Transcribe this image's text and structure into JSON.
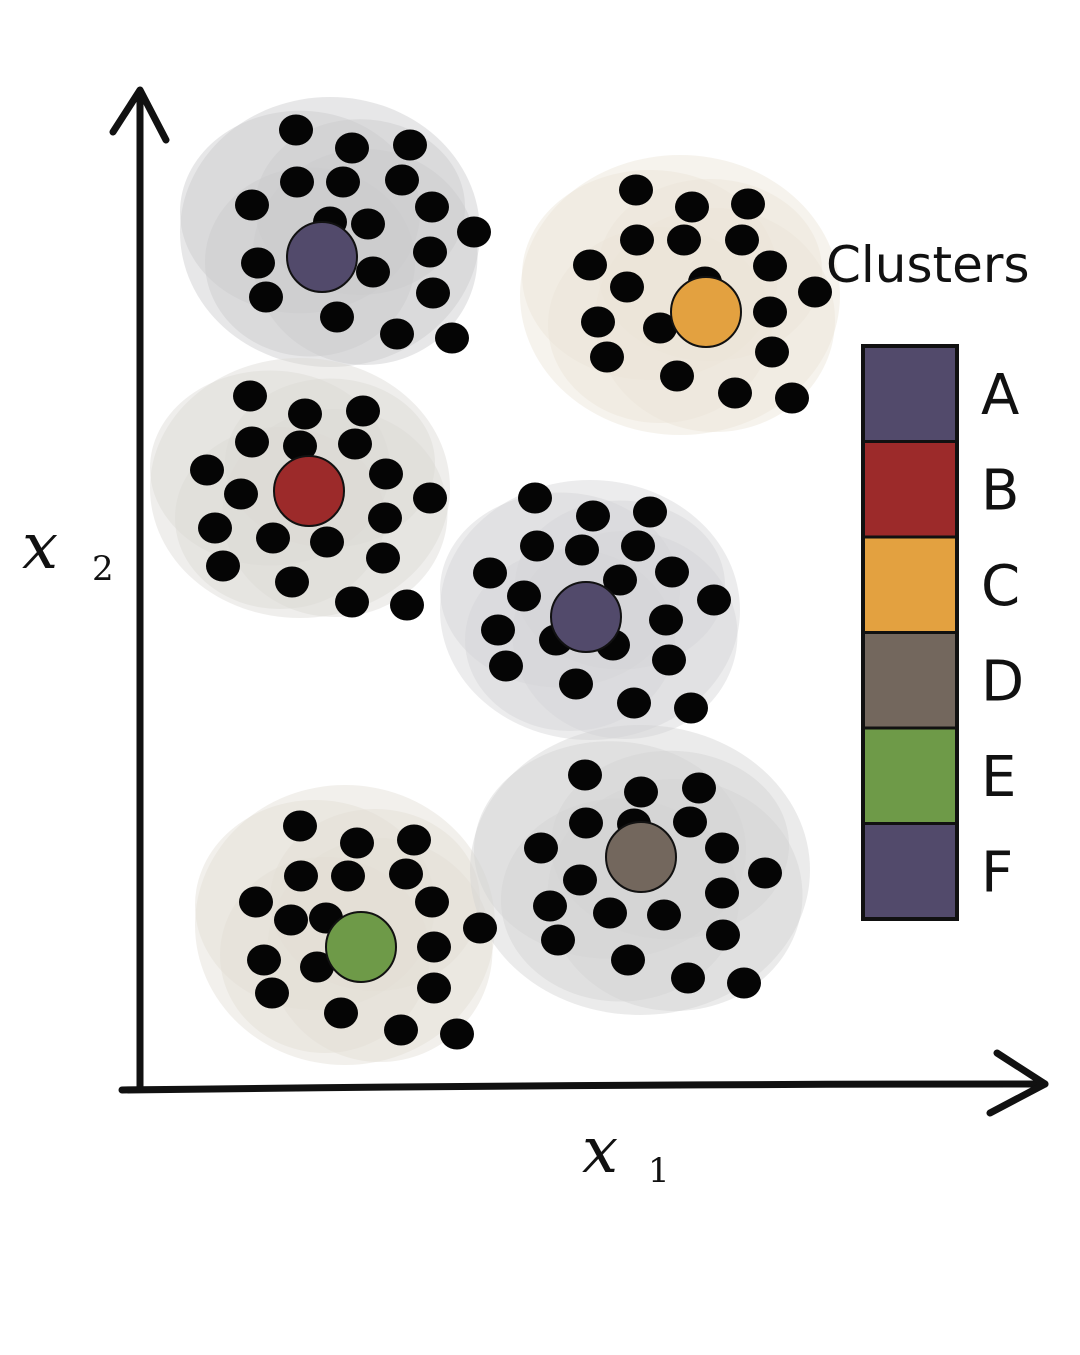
{
  "axes": {
    "x_label": "x",
    "x_subscript": "1",
    "y_label": "x",
    "y_subscript": "2"
  },
  "legend": {
    "title": "Clusters",
    "entries": [
      {
        "label": "A",
        "color": "#524a6b"
      },
      {
        "label": "B",
        "color": "#9c2a2a"
      },
      {
        "label": "C",
        "color": "#e3a140"
      },
      {
        "label": "D",
        "color": "#73675d"
      },
      {
        "label": "E",
        "color": "#6e9a48"
      },
      {
        "label": "F",
        "color": "#524a6b"
      }
    ]
  },
  "clusters": [
    {
      "label": "A",
      "color": "#524a6b",
      "shade": "#c9c9cb"
    },
    {
      "label": "C",
      "color": "#e3a140",
      "shade": "#ece4d8"
    },
    {
      "label": "B",
      "color": "#9c2a2a",
      "shade": "#dcd9d4"
    },
    {
      "label": "F",
      "color": "#524a6b",
      "shade": "#d5d5d6"
    },
    {
      "label": "E",
      "color": "#6e9a48",
      "shade": "#e2ddd4"
    },
    {
      "label": "D",
      "color": "#73675d",
      "shade": "#d2d2d3"
    }
  ]
}
